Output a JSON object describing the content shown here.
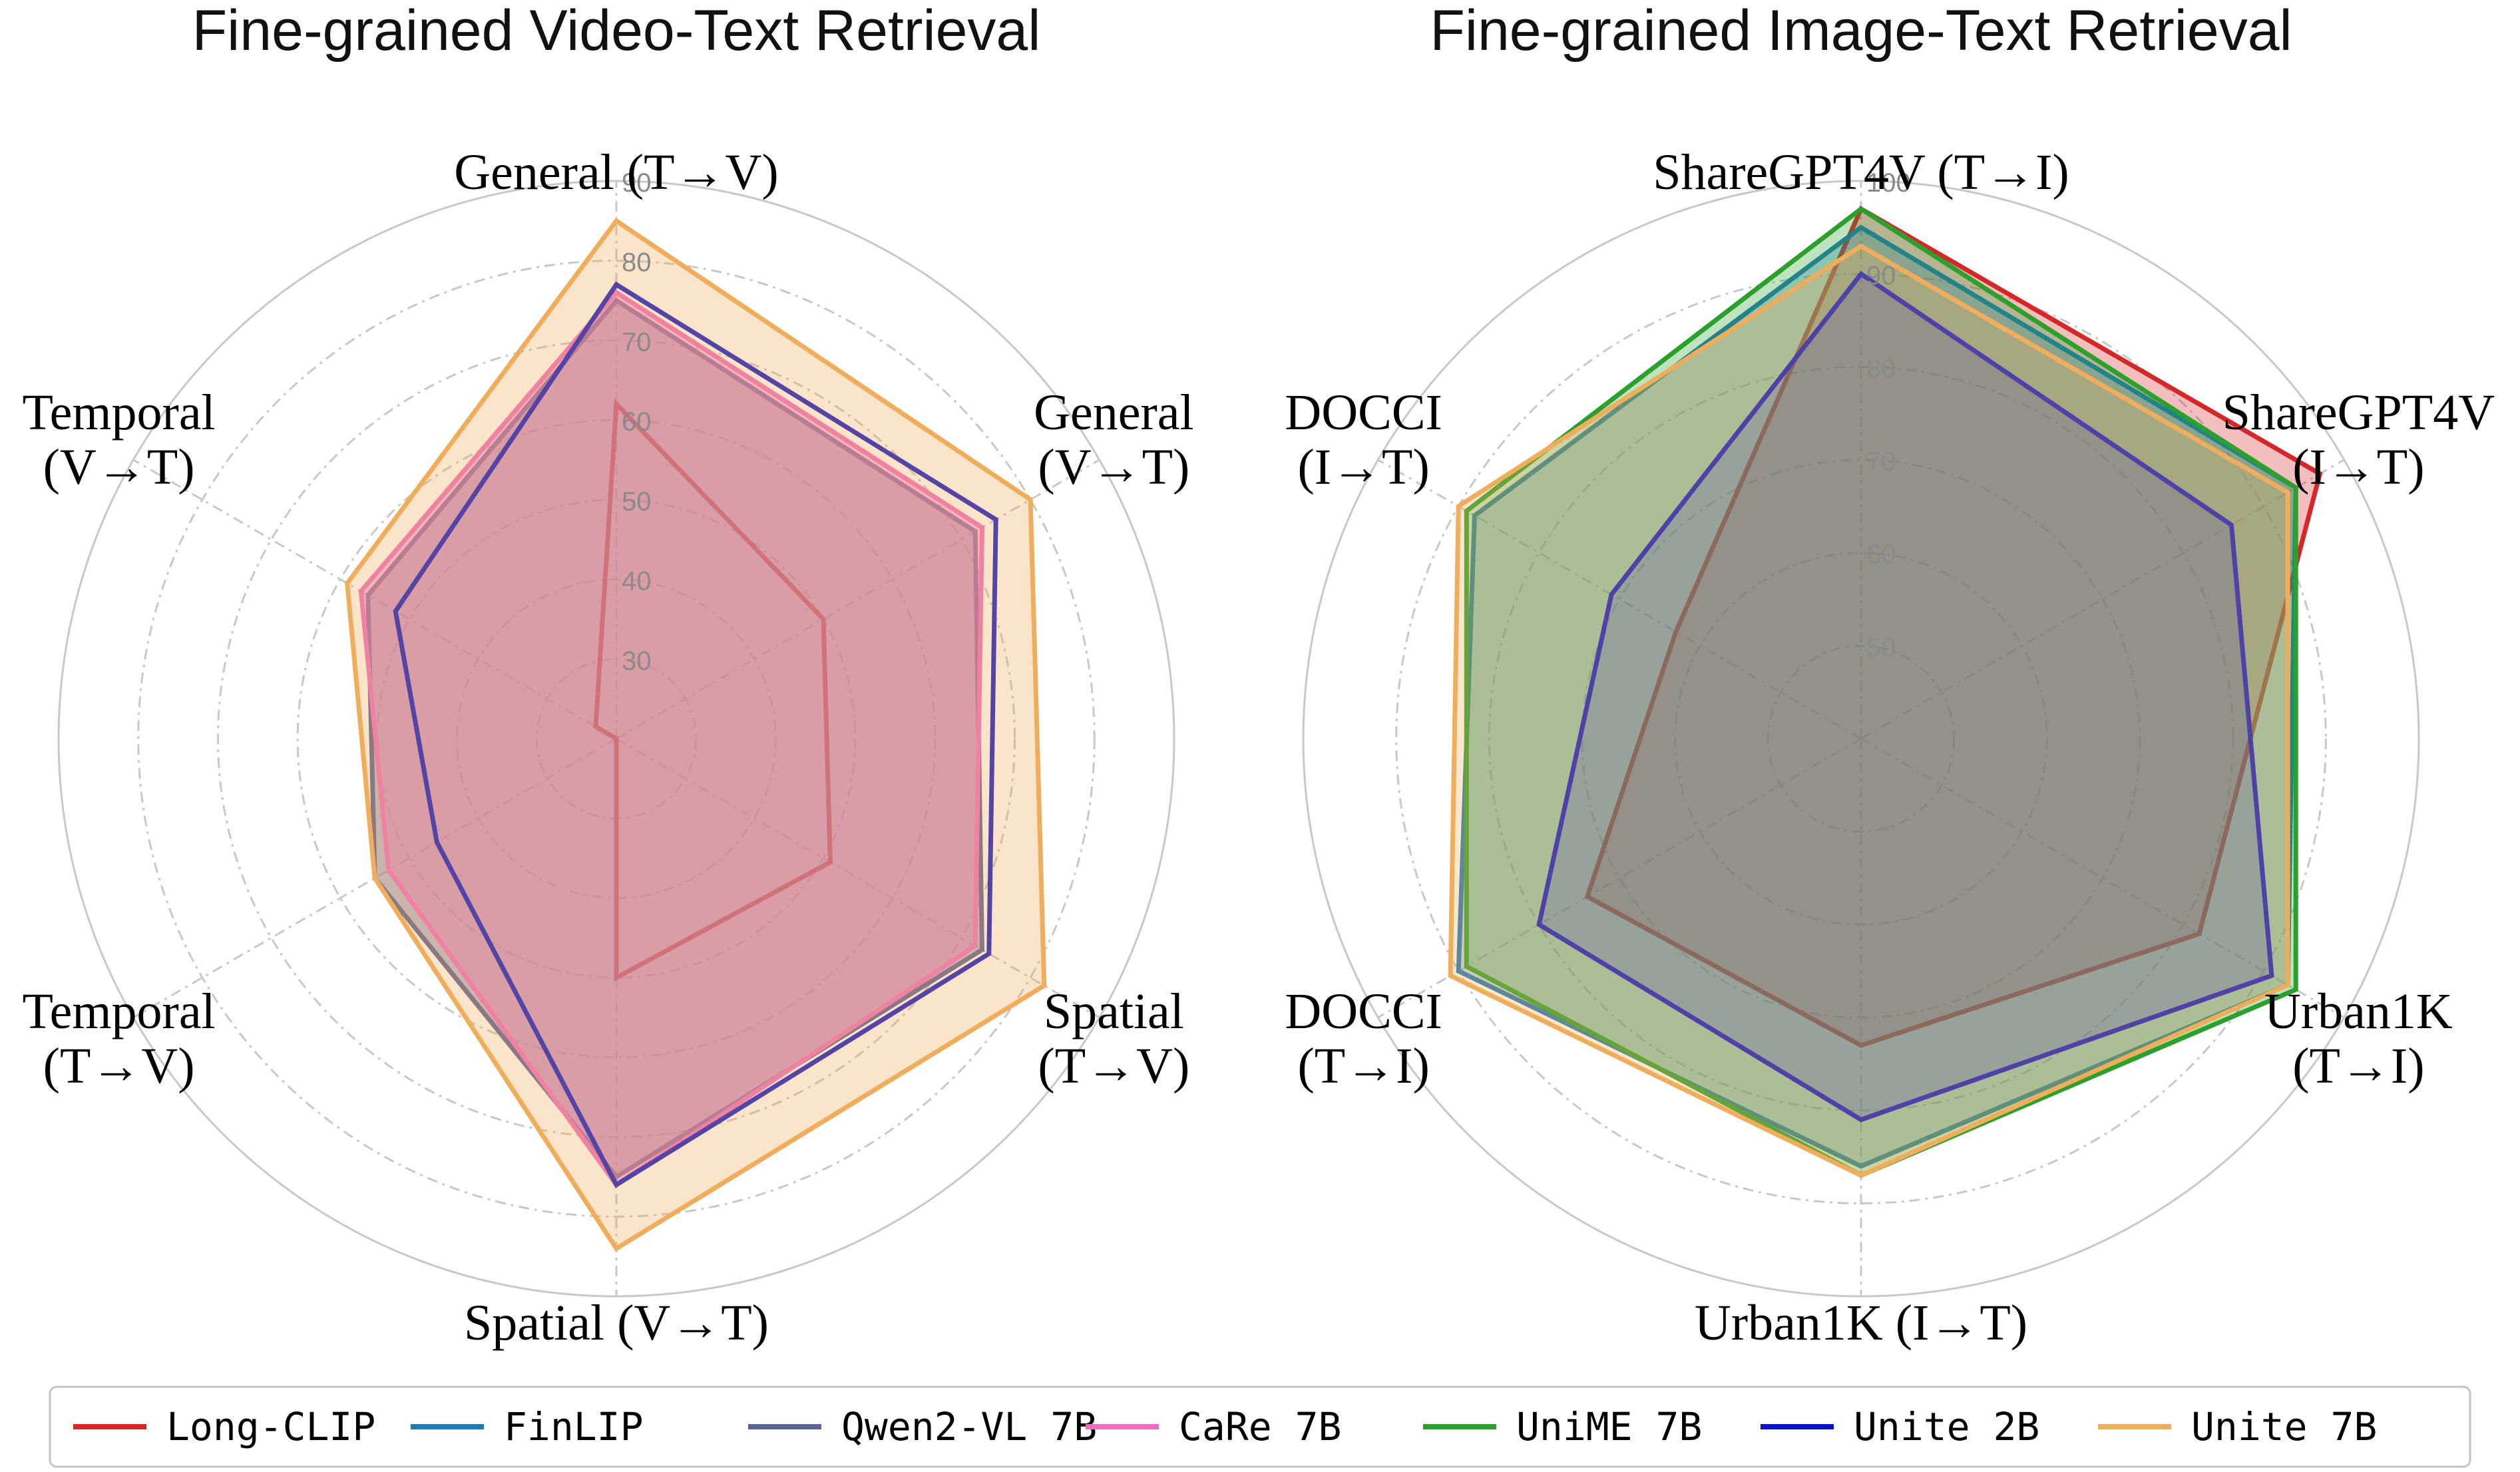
{
  "legend": [
    {
      "name": "Long-CLIP",
      "color": "#d62728"
    },
    {
      "name": "FinLIP",
      "color": "#1f77b4"
    },
    {
      "name": "Qwen2-VL 7B",
      "color": "#5b6196"
    },
    {
      "name": "CaRe 7B",
      "color": "#f06cc0"
    },
    {
      "name": "UniME 7B",
      "color": "#2ca02c"
    },
    {
      "name": "Unite 2B",
      "color": "#0a12c8"
    },
    {
      "name": "Unite 7B",
      "color": "#f0ae5c"
    }
  ],
  "chart_data": [
    {
      "type": "radar",
      "title": "Fine-grained Video-Text Retrieval",
      "axes": [
        "General (T→V)",
        "General\n(V→T)",
        "Spatial\n(T→V)",
        "Spatial (V→T)",
        "Temporal\n(T→V)",
        "Temporal\n(V→T)"
      ],
      "rlim": [
        20,
        90
      ],
      "rticks": [
        30,
        40,
        50,
        60,
        70,
        80,
        90
      ],
      "series": [
        {
          "name": "Long-CLIP",
          "color": "#d62728",
          "fill": false,
          "values": [
            62,
            50,
            51,
            50,
            20,
            23
          ]
        },
        {
          "name": "Qwen2-VL 7B",
          "color": "#5b6196",
          "fill": true,
          "fill_alpha": 0.45,
          "values": [
            75,
            72,
            73,
            75,
            55,
            56
          ]
        },
        {
          "name": "CaRe 7B",
          "color": "#f06cc0",
          "fill": true,
          "fill_alpha": 0.45,
          "values": [
            76,
            73,
            72,
            76,
            53,
            57
          ]
        },
        {
          "name": "Unite 2B",
          "color": "#0a12c8",
          "fill": false,
          "values": [
            77,
            75,
            74,
            76,
            46,
            52
          ]
        },
        {
          "name": "Unite 7B",
          "color": "#f0ae5c",
          "fill": true,
          "fill_alpha": 0.32,
          "values": [
            85,
            80,
            82,
            84,
            55,
            59
          ]
        }
      ]
    },
    {
      "type": "radar",
      "title": "Fine-grained Image-Text Retrieval",
      "axes": [
        "ShareGPT4V (T→I)",
        "ShareGPT4V\n(I→T)",
        "Urban1K\n(T→I)",
        "Urban1K (I→T)",
        "DOCCI\n(T→I)",
        "DOCCI\n(I→T)"
      ],
      "rlim": [
        40,
        100
      ],
      "rticks": [
        50,
        60,
        70,
        80,
        90,
        100
      ],
      "series": [
        {
          "name": "Long-CLIP",
          "color": "#d62728",
          "fill": true,
          "fill_alpha": 0.3,
          "values": [
            97,
            97,
            82,
            73,
            74,
            63
          ]
        },
        {
          "name": "FinLIP",
          "color": "#1f77b4",
          "fill": true,
          "fill_alpha": 0.3,
          "values": [
            95,
            94,
            93,
            86,
            90,
            88
          ]
        },
        {
          "name": "UniME 7B",
          "color": "#2ca02c",
          "fill": true,
          "fill_alpha": 0.3,
          "values": [
            97,
            94,
            94,
            87,
            89,
            89
          ]
        },
        {
          "name": "Unite 2B",
          "color": "#0a12c8",
          "fill": true,
          "fill_alpha": 0.22,
          "values": [
            90,
            86,
            91,
            81,
            80,
            71
          ]
        },
        {
          "name": "Unite 7B",
          "color": "#f0ae5c",
          "fill": true,
          "fill_alpha": 0.3,
          "values": [
            93,
            93,
            93,
            87,
            91,
            90
          ]
        }
      ]
    }
  ]
}
